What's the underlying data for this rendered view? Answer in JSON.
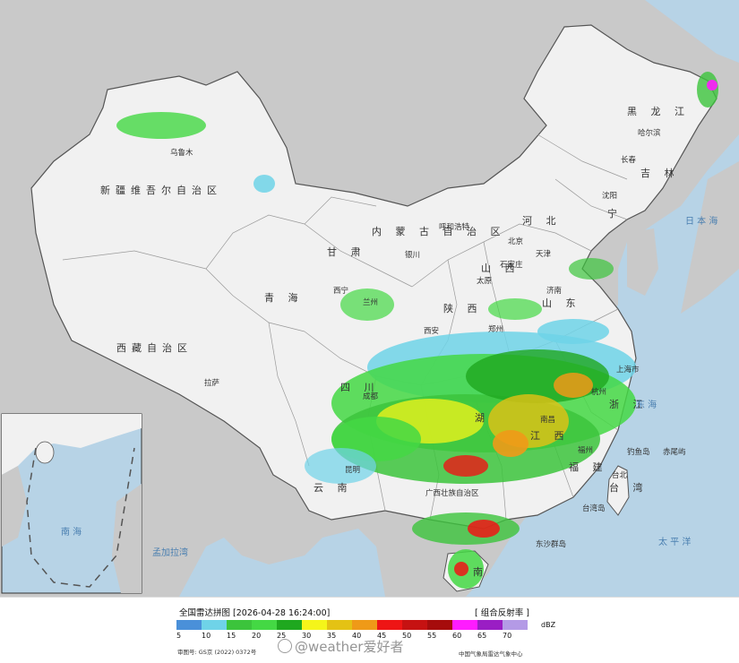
{
  "legend": {
    "title": "全国雷达拼图 [2026-04-28 16:24:00]",
    "product": "[ 组合反射率 ]",
    "unit": "dBZ",
    "ticks": [
      "5",
      "10",
      "15",
      "20",
      "25",
      "30",
      "35",
      "40",
      "45",
      "50",
      "55",
      "60",
      "65",
      "70"
    ],
    "colors": [
      "#4a90d9",
      "#6fd3e8",
      "#3cc43c",
      "#44d844",
      "#1fa81f",
      "#f5f51a",
      "#e4c214",
      "#ef9a18",
      "#ee1515",
      "#c61212",
      "#a60c0c",
      "#ff1cff",
      "#9a1ec4",
      "#b49ae6"
    ]
  },
  "footer": {
    "approval": "审图号: GS京 (2022) 0372号",
    "organization": "中国气象局雷达气象中心",
    "watermark": "@weather爱好者"
  },
  "map": {
    "colors": {
      "land": "#f1f1f1",
      "neighbor": "#c9c9c9",
      "sea": "#b7d3e6",
      "boundary": "#555555",
      "inner": "#9a9a9a"
    },
    "provinces": [
      {
        "id": "xinjiang",
        "text": "新疆维吾尔自治区"
      },
      {
        "id": "xizang",
        "text": "西藏自治区"
      },
      {
        "id": "qinghai",
        "text": "青 海"
      },
      {
        "id": "gansu",
        "text": "甘 肃"
      },
      {
        "id": "neimenggu",
        "text": "内 蒙 古 自 治 区"
      },
      {
        "id": "heilongjiang",
        "text": "黑 龙 江"
      },
      {
        "id": "jilin",
        "text": "吉 林"
      },
      {
        "id": "liaoning",
        "text": "宁"
      },
      {
        "id": "sichuan",
        "text": "四 川"
      },
      {
        "id": "yunnan",
        "text": "云 南"
      },
      {
        "id": "shaanxi",
        "text": "陕 西"
      },
      {
        "id": "shanxi",
        "text": "山 西"
      },
      {
        "id": "shandong",
        "text": "山 东"
      },
      {
        "id": "zhejiang",
        "text": "浙 江"
      },
      {
        "id": "jiangxi",
        "text": "江 西"
      },
      {
        "id": "fujian",
        "text": "福 建"
      },
      {
        "id": "taiwan",
        "text": "台 湾"
      },
      {
        "id": "guangxi",
        "text": "广西壮族自治区"
      },
      {
        "id": "hainan",
        "text": "南"
      },
      {
        "id": "hebei",
        "text": "河 北"
      },
      {
        "id": "hunan",
        "text": "湖"
      }
    ],
    "cities": [
      {
        "id": "urumqi",
        "text": "乌鲁木"
      },
      {
        "id": "lhasa",
        "text": "拉萨"
      },
      {
        "id": "xining",
        "text": "西宁"
      },
      {
        "id": "lanzhou",
        "text": "兰州"
      },
      {
        "id": "yinchuan",
        "text": "银川"
      },
      {
        "id": "huhehaote",
        "text": "呼和浩特"
      },
      {
        "id": "harbin",
        "text": "哈尔滨"
      },
      {
        "id": "changchun",
        "text": "长春"
      },
      {
        "id": "shenyang",
        "text": "沈阳"
      },
      {
        "id": "beijing",
        "text": "北京"
      },
      {
        "id": "tianjin",
        "text": "天津"
      },
      {
        "id": "shijiazhuang",
        "text": "石家庄"
      },
      {
        "id": "taiyuan",
        "text": "太原"
      },
      {
        "id": "jinan",
        "text": "济南"
      },
      {
        "id": "xian",
        "text": "西安"
      },
      {
        "id": "zhengzhou",
        "text": "郑州"
      },
      {
        "id": "chengdu",
        "text": "成都"
      },
      {
        "id": "kunming",
        "text": "昆明"
      },
      {
        "id": "nanchang",
        "text": "南昌"
      },
      {
        "id": "fuzhou",
        "text": "福州"
      },
      {
        "id": "taipei",
        "text": "台北"
      },
      {
        "id": "shanghai",
        "text": "上海市"
      },
      {
        "id": "hangzhou",
        "text": "杭州"
      }
    ],
    "seas": [
      {
        "id": "sea-japan",
        "text": "日 本 海"
      },
      {
        "id": "east-sea",
        "text": "东 海"
      },
      {
        "id": "pacific",
        "text": "太 平 洋"
      },
      {
        "id": "bengal",
        "text": "孟加拉湾"
      },
      {
        "id": "south-sea",
        "text": "南 海"
      }
    ],
    "islands": [
      {
        "id": "diaoyu",
        "text": "钓鱼岛"
      },
      {
        "id": "chiwei",
        "text": "赤尾屿"
      },
      {
        "id": "taiwan-island",
        "text": "台湾岛"
      },
      {
        "id": "dongsha",
        "text": "东沙群岛"
      }
    ]
  }
}
